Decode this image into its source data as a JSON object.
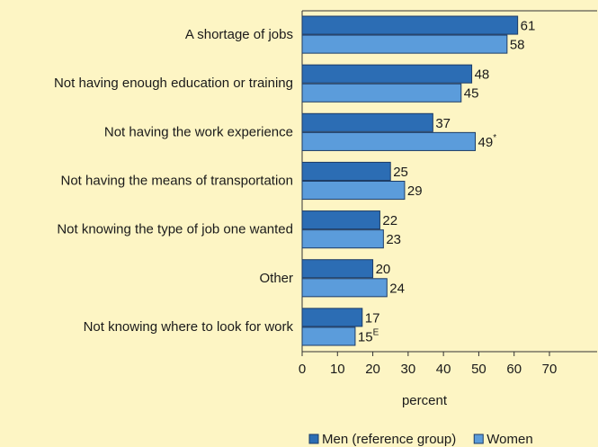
{
  "chart_data": {
    "type": "barh",
    "categories": [
      "A shortage of jobs",
      "Not having enough education or training",
      "Not having the work experience",
      "Not having the means of transportation",
      "Not knowing the type of job one wanted",
      "Other",
      "Not knowing where to look for work"
    ],
    "series": [
      {
        "name": "Men (reference group)",
        "color": "#2c6db4",
        "values": [
          61,
          48,
          37,
          25,
          22,
          20,
          17
        ]
      },
      {
        "name": "Women",
        "color": "#5b9cdb",
        "values": [
          58,
          45,
          49,
          29,
          23,
          24,
          15
        ],
        "value_labels": [
          "58",
          "45",
          "49*",
          "29",
          "23",
          "24",
          "15E"
        ]
      }
    ],
    "xlabel": "percent",
    "xlim": [
      0,
      70
    ],
    "xticks": [
      0,
      10,
      20,
      30,
      40,
      50,
      60,
      70
    ],
    "legend": "bottom"
  }
}
